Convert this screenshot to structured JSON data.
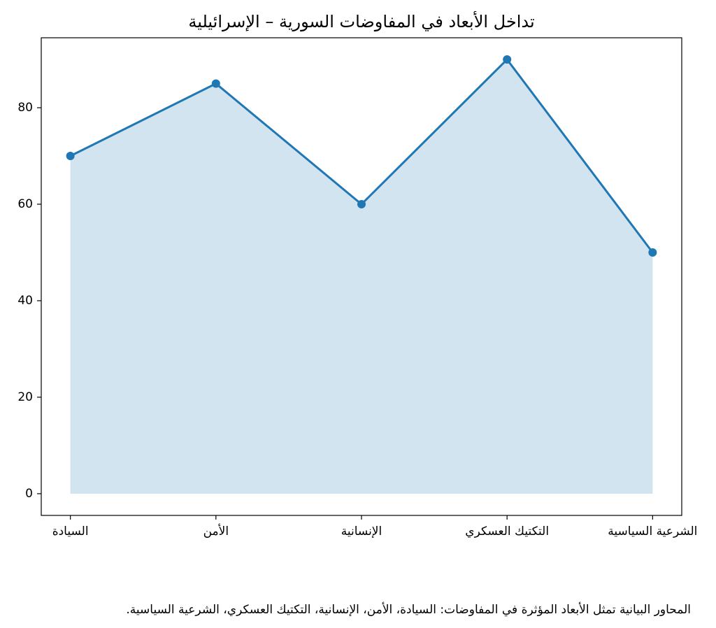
{
  "chart_data": {
    "type": "line",
    "title": "تداخل الأبعاد في المفاوضات السورية – الإسرائيلية",
    "categories": [
      "السيادة",
      "الأمن",
      "الإنسانية",
      "التكتيك العسكري",
      "الشرعية السياسية"
    ],
    "values": [
      70,
      85,
      60,
      90,
      50
    ],
    "color": "#1f77b4",
    "fill": true,
    "ylim": [
      -4.5,
      94.5
    ],
    "yticks": [
      0,
      20,
      40,
      60,
      80
    ],
    "grid": false,
    "caption": "المحاور البيانية تمثل الأبعاد المؤثرة في المفاوضات: السيادة، الأمن، الإنسانية، التكتيك العسكري، الشرعية السياسية."
  }
}
